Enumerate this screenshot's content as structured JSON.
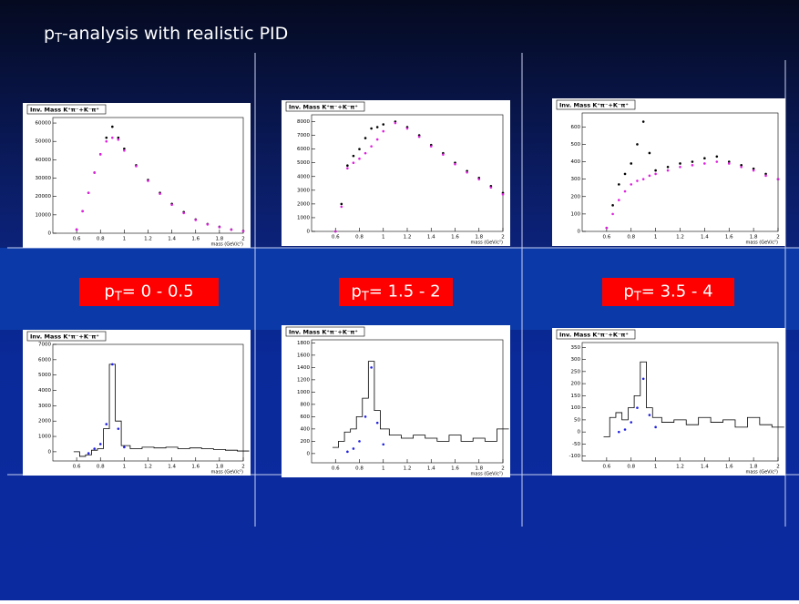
{
  "slide_title": {
    "symbol": "p",
    "subscript": "T",
    "text": "-analysis with realistic PID"
  },
  "pt_labels": [
    {
      "symbol": "p",
      "subscript": "T",
      "text": "= 0 - 0.5"
    },
    {
      "symbol": "p",
      "subscript": "T",
      "text": "= 1.5 - 2"
    },
    {
      "symbol": "p",
      "subscript": "T",
      "text": "= 3.5 - 4"
    }
  ],
  "chart_data": [
    {
      "type": "scatter",
      "title": "Inv. Mass K⁺π⁻+K⁻π⁺",
      "x_label": "mass (GeV/c²)",
      "x": [
        0.6,
        0.65,
        0.7,
        0.75,
        0.8,
        0.85,
        0.9,
        0.95,
        1.0,
        1.1,
        1.2,
        1.3,
        1.4,
        1.5,
        1.6,
        1.7,
        1.8,
        1.9,
        2.0
      ],
      "xlim": [
        0.4,
        2.0
      ],
      "xticks": [
        0.6,
        0.8,
        1,
        1.2,
        1.4,
        1.6,
        1.8,
        2
      ],
      "ylim": [
        0,
        63000
      ],
      "yticks": [
        0,
        10000,
        20000,
        30000,
        40000,
        50000,
        60000
      ],
      "series": [
        {
          "color": "#000000",
          "style": "points",
          "values": [
            2000,
            12000,
            22000,
            33000,
            43000,
            52000,
            58000,
            52000,
            46000,
            37000,
            29000,
            22000,
            16000,
            11500,
            7500,
            5000,
            3500,
            2000,
            1200
          ]
        },
        {
          "color": "#e020e0",
          "style": "points",
          "values": [
            2000,
            12000,
            22000,
            33000,
            43000,
            50000,
            52000,
            51000,
            45000,
            36500,
            28500,
            21500,
            15500,
            11000,
            7200,
            4800,
            3300,
            1900,
            1100
          ]
        }
      ]
    },
    {
      "type": "scatter",
      "title": "Inv. Mass K⁺π⁻+K⁻π⁺",
      "x_label": "mass (GeV/c²)",
      "x": [
        0.6,
        0.65,
        0.7,
        0.75,
        0.8,
        0.85,
        0.9,
        0.95,
        1.0,
        1.1,
        1.2,
        1.3,
        1.4,
        1.5,
        1.6,
        1.7,
        1.8,
        1.9,
        2.0
      ],
      "xlim": [
        0.4,
        2.0
      ],
      "xticks": [
        0.6,
        0.8,
        1,
        1.2,
        1.4,
        1.6,
        1.8,
        2
      ],
      "ylim": [
        0,
        8500
      ],
      "yticks": [
        0,
        1000,
        2000,
        3000,
        4000,
        5000,
        6000,
        7000,
        8000
      ],
      "series": [
        {
          "color": "#000000",
          "style": "points",
          "values": [
            0,
            2000,
            4800,
            5500,
            6000,
            6800,
            7500,
            7600,
            7800,
            8000,
            7600,
            7000,
            6300,
            5700,
            5000,
            4400,
            3900,
            3300,
            2800
          ]
        },
        {
          "color": "#e020e0",
          "style": "points",
          "values": [
            0,
            1800,
            4600,
            5000,
            5300,
            5700,
            6200,
            6700,
            7300,
            7900,
            7500,
            6900,
            6200,
            5600,
            4900,
            4300,
            3800,
            3200,
            2700
          ]
        }
      ]
    },
    {
      "type": "scatter",
      "title": "Inv. Mass K⁺π⁻+K⁻π⁺",
      "x_label": "mass (GeV/c²)",
      "x": [
        0.6,
        0.65,
        0.7,
        0.75,
        0.8,
        0.85,
        0.9,
        0.95,
        1.0,
        1.1,
        1.2,
        1.3,
        1.4,
        1.5,
        1.6,
        1.7,
        1.8,
        1.9,
        2.0
      ],
      "xlim": [
        0.4,
        2.0
      ],
      "xticks": [
        0.6,
        0.8,
        1,
        1.2,
        1.4,
        1.6,
        1.8,
        2
      ],
      "ylim": [
        0,
        680
      ],
      "yticks": [
        0,
        100,
        200,
        300,
        400,
        500,
        600
      ],
      "series": [
        {
          "color": "#000000",
          "style": "points",
          "values": [
            20,
            150,
            270,
            330,
            390,
            500,
            630,
            450,
            350,
            370,
            390,
            400,
            420,
            430,
            400,
            380,
            360,
            330,
            300
          ]
        },
        {
          "color": "#e020e0",
          "style": "points",
          "values": [
            20,
            100,
            180,
            230,
            270,
            290,
            300,
            320,
            330,
            350,
            370,
            380,
            390,
            400,
            390,
            370,
            350,
            320,
            300
          ]
        }
      ]
    },
    {
      "type": "line",
      "title": "Inv. Mass K⁺π⁻+K⁻π⁺",
      "x_label": "mass (GeV/c²)",
      "x": [
        0.6,
        0.65,
        0.7,
        0.75,
        0.8,
        0.85,
        0.9,
        0.95,
        1.0,
        1.1,
        1.2,
        1.3,
        1.4,
        1.5,
        1.6,
        1.7,
        1.8,
        1.9,
        2.0
      ],
      "xlim": [
        0.4,
        2.0
      ],
      "xticks": [
        0.6,
        0.8,
        1,
        1.2,
        1.4,
        1.6,
        1.8,
        2
      ],
      "ylim": [
        -600,
        7000
      ],
      "yticks": [
        0,
        1000,
        2000,
        3000,
        4000,
        5000,
        6000,
        7000
      ],
      "series": [
        {
          "color": "#000000",
          "style": "step",
          "values": [
            0,
            -300,
            -200,
            100,
            200,
            1500,
            5700,
            2000,
            400,
            200,
            300,
            250,
            300,
            200,
            250,
            200,
            150,
            100,
            50
          ]
        },
        {
          "color": "#2020e0",
          "style": "points",
          "values": [
            null,
            null,
            -100,
            200,
            500,
            1800,
            5700,
            1500,
            300,
            null,
            null,
            null,
            null,
            null,
            null,
            null,
            null,
            null,
            null
          ]
        }
      ]
    },
    {
      "type": "line",
      "title": "Inv. Mass K⁺π⁻+K⁻π⁺",
      "x_label": "mass (GeV/c²)",
      "x": [
        0.6,
        0.65,
        0.7,
        0.75,
        0.8,
        0.85,
        0.9,
        0.95,
        1.0,
        1.1,
        1.2,
        1.3,
        1.4,
        1.5,
        1.6,
        1.7,
        1.8,
        1.9,
        2.0
      ],
      "xlim": [
        0.4,
        2.0
      ],
      "xticks": [
        0.6,
        0.8,
        1,
        1.2,
        1.4,
        1.6,
        1.8,
        2
      ],
      "ylim": [
        -150,
        1850
      ],
      "yticks": [
        0,
        200,
        400,
        600,
        800,
        1000,
        1200,
        1400,
        1600,
        1800
      ],
      "series": [
        {
          "color": "#000000",
          "style": "step",
          "values": [
            100,
            200,
            350,
            400,
            600,
            900,
            1500,
            700,
            400,
            300,
            250,
            300,
            250,
            200,
            300,
            200,
            250,
            200,
            400
          ]
        },
        {
          "color": "#2020e0",
          "style": "points",
          "values": [
            null,
            null,
            30,
            80,
            200,
            600,
            1400,
            500,
            150,
            null,
            null,
            null,
            null,
            null,
            null,
            null,
            null,
            null,
            null
          ]
        }
      ]
    },
    {
      "type": "line",
      "title": "Inv. Mass K⁺π⁻+K⁻π⁺",
      "x_label": "mass (GeV/c²)",
      "x": [
        0.6,
        0.65,
        0.7,
        0.75,
        0.8,
        0.85,
        0.9,
        0.95,
        1.0,
        1.1,
        1.2,
        1.3,
        1.4,
        1.5,
        1.6,
        1.7,
        1.8,
        1.9,
        2.0
      ],
      "xlim": [
        0.4,
        2.0
      ],
      "xticks": [
        0.6,
        0.8,
        1,
        1.2,
        1.4,
        1.6,
        1.8,
        2
      ],
      "ylim": [
        -120,
        370
      ],
      "yticks": [
        -100,
        -50,
        0,
        50,
        100,
        150,
        200,
        250,
        300,
        350
      ],
      "series": [
        {
          "color": "#000000",
          "style": "step",
          "values": [
            -20,
            60,
            80,
            50,
            100,
            150,
            290,
            100,
            60,
            40,
            50,
            30,
            60,
            40,
            50,
            20,
            60,
            30,
            20
          ]
        },
        {
          "color": "#2020e0",
          "style": "points",
          "values": [
            null,
            null,
            0,
            10,
            40,
            100,
            220,
            70,
            20,
            null,
            null,
            null,
            null,
            null,
            null,
            null,
            null,
            null,
            null
          ]
        }
      ]
    }
  ]
}
